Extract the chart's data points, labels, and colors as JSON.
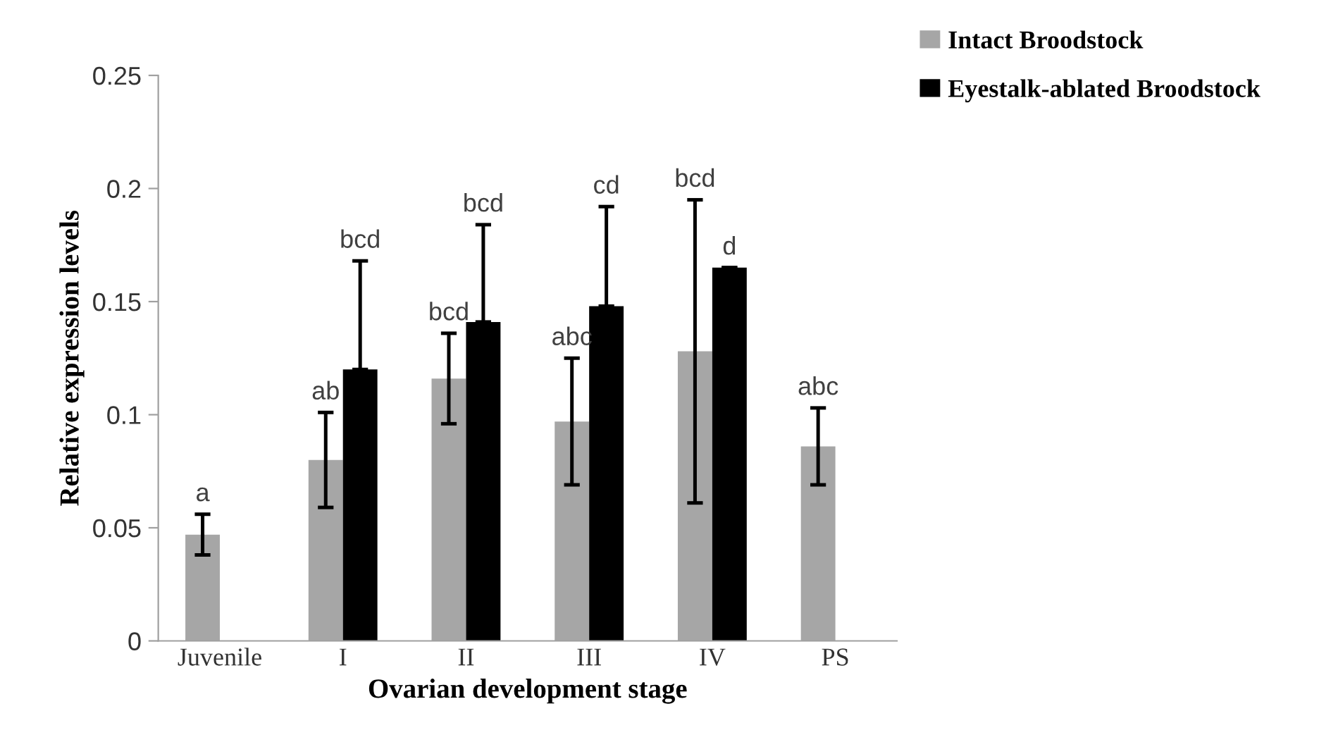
{
  "chart_data": {
    "type": "bar",
    "xlabel": "Ovarian development stage",
    "ylabel": "Relative expression levels",
    "categories": [
      "Juvenile",
      "I",
      "II",
      "III",
      "IV",
      "PS"
    ],
    "series": [
      {
        "name": "Intact Broodstock",
        "color": "#a6a6a6",
        "values": [
          0.047,
          0.08,
          0.116,
          0.097,
          0.128,
          0.086
        ],
        "errors": [
          0.009,
          0.021,
          0.02,
          0.028,
          0.067,
          0.017
        ]
      },
      {
        "name": "Eyestalk-ablated Broodstock",
        "color": "#000000",
        "values": [
          null,
          0.12,
          0.141,
          0.148,
          0.165,
          null
        ],
        "errors": [
          null,
          [
            0.12,
            0.168
          ],
          [
            0.141,
            0.184
          ],
          [
            0.148,
            0.192
          ],
          null,
          null
        ]
      }
    ],
    "ylim": [
      0,
      0.25
    ],
    "yticks": [
      0,
      0.05,
      0.1,
      0.15,
      0.2,
      0.25
    ],
    "grid": false,
    "legend": "top right",
    "annotations": [
      "a",
      "ab",
      "bcd",
      "bcd",
      "bcd",
      "abc",
      "cd",
      "bcd",
      "d",
      "abc"
    ]
  }
}
